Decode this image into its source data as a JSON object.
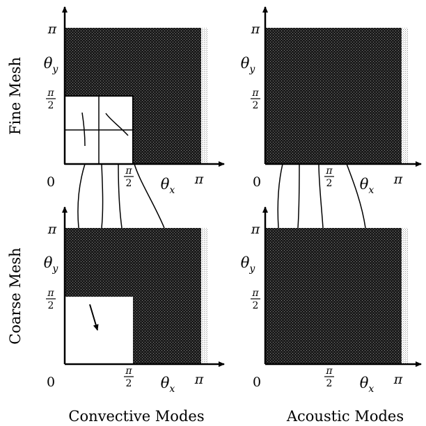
{
  "row_labels": {
    "fine": "Fine Mesh",
    "coarse": "Coarse Mesh"
  },
  "column_labels": {
    "convective": "Convective Modes",
    "acoustic": "Acoustic Modes"
  },
  "axes": {
    "origin": "0",
    "pi": "π",
    "half_num": "π",
    "half_den": "2",
    "theta": "θ",
    "sub_x": "x",
    "sub_y": "y"
  },
  "colors": {
    "dark_region": "#1c1c1c",
    "stipple": "#9a9a9a",
    "white_region": "#ffffff",
    "line": "#000000"
  }
}
